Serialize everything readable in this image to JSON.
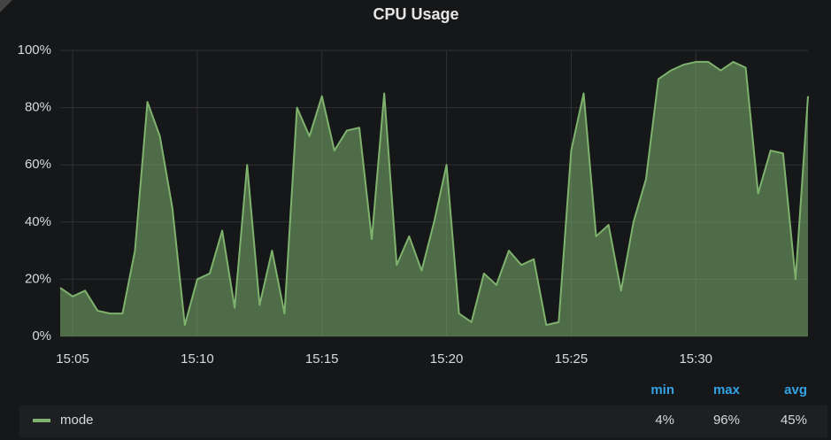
{
  "chart_data": {
    "type": "area",
    "title": "CPU Usage",
    "categories": [
      null,
      "15:05",
      null,
      null,
      null,
      null,
      null,
      null,
      null,
      null,
      null,
      "15:10",
      null,
      null,
      null,
      null,
      null,
      null,
      null,
      null,
      null,
      "15:15",
      null,
      null,
      null,
      null,
      null,
      null,
      null,
      null,
      null,
      "15:20",
      null,
      null,
      null,
      null,
      null,
      null,
      null,
      null,
      null,
      "15:25",
      null,
      null,
      null,
      null,
      null,
      null,
      null,
      null,
      null,
      "15:30",
      null,
      null,
      null,
      null,
      null,
      null,
      null,
      null,
      null
    ],
    "series": [
      {
        "name": "mode",
        "color": "#7eb26d",
        "values": [
          17,
          14,
          16,
          9,
          8,
          8,
          30,
          82,
          70,
          45,
          4,
          20,
          22,
          37,
          10,
          60,
          11,
          30,
          8,
          80,
          70,
          84,
          65,
          72,
          73,
          34,
          85,
          25,
          35,
          23,
          40,
          60,
          8,
          5,
          22,
          18,
          30,
          25,
          27,
          4,
          5,
          65,
          85,
          35,
          39,
          16,
          40,
          55,
          90,
          93,
          95,
          96,
          96,
          93,
          96,
          94,
          50,
          65,
          64,
          20,
          84
        ],
        "stats": {
          "names": [
            "min",
            "max",
            "avg"
          ],
          "values": [
            4,
            96,
            45
          ],
          "value_labels": [
            "4%",
            "96%",
            "45%"
          ]
        }
      }
    ],
    "ylim": [
      0,
      100
    ],
    "yticks": [
      {
        "value": 0,
        "label": "0%"
      },
      {
        "value": 20,
        "label": "20%"
      },
      {
        "value": 40,
        "label": "40%"
      },
      {
        "value": 60,
        "label": "60%"
      },
      {
        "value": 80,
        "label": "80%"
      },
      {
        "value": 100,
        "label": "100%"
      }
    ],
    "grid": true,
    "legend": "bottom"
  }
}
